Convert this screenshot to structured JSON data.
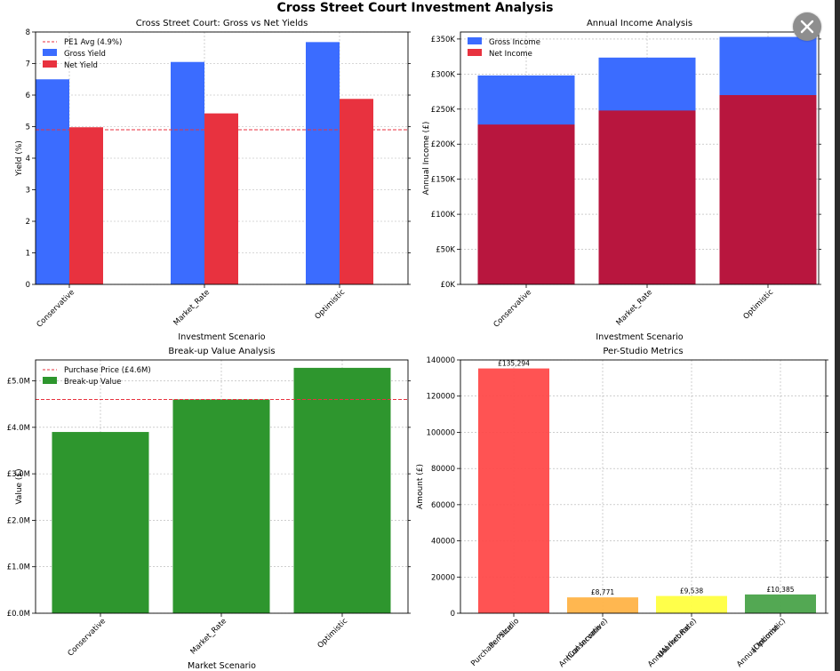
{
  "figure": {
    "suptitle": "Cross Street Court Investment Analysis",
    "close_icon": "close-icon"
  },
  "colors": {
    "gross": "#3b6cff",
    "net": "#e8323f",
    "net_income": "#b8163e",
    "breakup": "#2e962e",
    "refline": "#e8323f",
    "per_studio": [
      "#ff4a4a",
      "#ffb347",
      "#ffff40",
      "#4aa34a"
    ]
  },
  "chart_data": [
    {
      "id": "yields",
      "type": "bar",
      "title": "Cross Street Court: Gross vs Net Yields",
      "xlabel": "Investment Scenario",
      "ylabel": "Yield (%)",
      "categories": [
        "Conservative",
        "Market_Rate",
        "Optimistic"
      ],
      "series": [
        {
          "name": "Gross Yield",
          "values": [
            6.5,
            7.05,
            7.68
          ]
        },
        {
          "name": "Net Yield",
          "values": [
            4.98,
            5.42,
            5.88
          ]
        }
      ],
      "reference_line": {
        "name": "PE1 Avg (4.9%)",
        "value": 4.9
      },
      "ylim": [
        0,
        8
      ],
      "yticks": [
        "0",
        "1",
        "2",
        "3",
        "4",
        "5",
        "6",
        "7",
        "8"
      ],
      "legend": "top-left",
      "grid": true
    },
    {
      "id": "income",
      "type": "bar",
      "title": "Annual Income Analysis",
      "xlabel": "Investment Scenario",
      "ylabel": "Annual Income (£)",
      "categories": [
        "Conservative",
        "Market_Rate",
        "Optimistic"
      ],
      "series": [
        {
          "name": "Gross Income",
          "values": [
            298000,
            323500,
            353000
          ]
        },
        {
          "name": "Net Income",
          "values": [
            228000,
            248000,
            270000
          ]
        }
      ],
      "ylim": [
        0,
        360000
      ],
      "yticks": [
        "£0K",
        "£50K",
        "£100K",
        "£150K",
        "£200K",
        "£250K",
        "£300K",
        "£350K"
      ],
      "legend": "top-left",
      "grid": true
    },
    {
      "id": "breakup",
      "type": "bar",
      "title": "Break-up Value Analysis",
      "xlabel": "Market Scenario",
      "ylabel": "Value (£)",
      "categories": [
        "Conservative",
        "Market_Rate",
        "Optimistic"
      ],
      "series": [
        {
          "name": "Break-up Value",
          "values": [
            3.9,
            4.6,
            5.28
          ]
        }
      ],
      "reference_line": {
        "name": "Purchase Price (£4.6M)",
        "value": 4.6
      },
      "ylim": [
        0,
        5.45
      ],
      "yticks": [
        "£0.0M",
        "£1.0M",
        "£2.0M",
        "£3.0M",
        "£4.0M",
        "£5.0M"
      ],
      "legend": "top-left",
      "grid": true
    },
    {
      "id": "per_studio",
      "type": "bar",
      "title": "Per-Studio Metrics",
      "xlabel": "",
      "ylabel": "Amount (£)",
      "categories": [
        "Purchase Price\nPer Studio",
        "Annual Income\n(Conservative)",
        "Annual Income\n(Market Rate)",
        "Annual Income\n(Optimistic)"
      ],
      "values": [
        135294,
        8771,
        9538,
        10385
      ],
      "data_labels": [
        "£135,294",
        "£8,771",
        "£9,538",
        "£10,385"
      ],
      "ylim": [
        0,
        140000
      ],
      "yticks": [
        "0",
        "20000",
        "40000",
        "60000",
        "80000",
        "100000",
        "120000",
        "140000"
      ],
      "grid": true
    }
  ]
}
